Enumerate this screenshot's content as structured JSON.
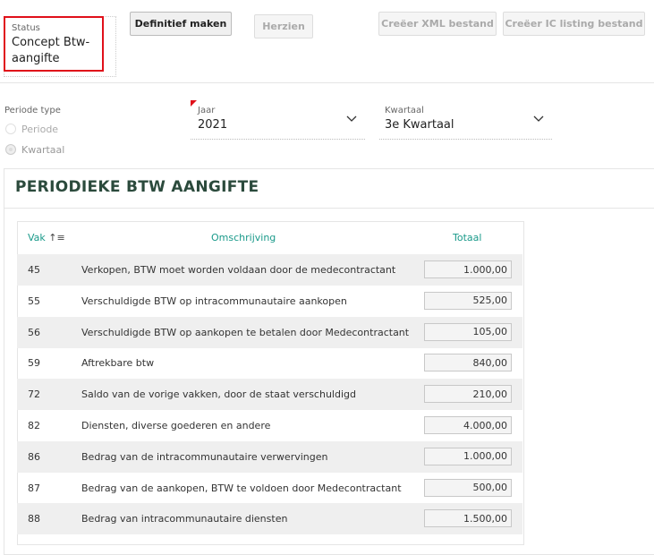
{
  "status": {
    "label": "Status",
    "value": "Concept Btw-aangifte"
  },
  "buttons": [
    "Definitief maken",
    "Herzien",
    "Creëer XML bestand",
    "Creëer IC listing bestand"
  ],
  "period_type": {
    "label": "Periode type",
    "options": [
      "Periode",
      "Kwartaal"
    ]
  },
  "year": {
    "label": "Jaar",
    "value": "2021"
  },
  "quarter": {
    "label": "Kwartaal",
    "value": "3e Kwartaal"
  },
  "section": {
    "title": "PERIODIEKE BTW AANGIFTE"
  },
  "table": {
    "header": [
      "Vak",
      "Omschrijving",
      "Totaal"
    ],
    "rows": [
      [
        "45",
        "Verkopen, BTW moet worden voldaan door de medecontractant",
        "1.000,00"
      ],
      [
        "55",
        "Verschuldigde BTW op intracommunautaire aankopen",
        "525,00"
      ],
      [
        "56",
        "Verschuldigde BTW op aankopen te betalen door Medecontractant",
        "105,00"
      ],
      [
        "59",
        "Aftrekbare btw",
        "840,00"
      ],
      [
        "72",
        "Saldo van de vorige vakken, door de staat verschuldigd",
        "210,00"
      ],
      [
        "82",
        "Diensten, diverse goederen en andere",
        "4.000,00"
      ],
      [
        "86",
        "Bedrag van de intracommunautaire verwervingen",
        "1.000,00"
      ],
      [
        "87",
        "Bedrag van de aankopen, BTW te voldoen door Medecontractant",
        "500,00"
      ],
      [
        "88",
        "Bedrag van intracommunautaire diensten",
        "1.500,00"
      ]
    ]
  }
}
